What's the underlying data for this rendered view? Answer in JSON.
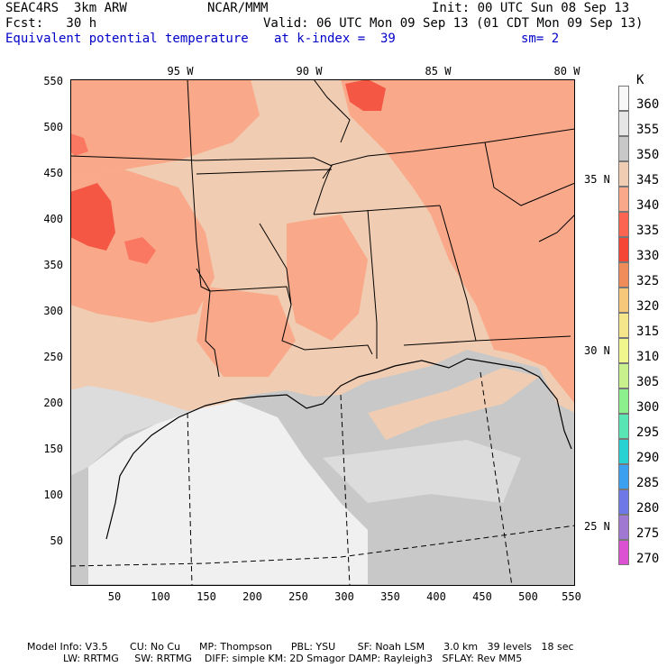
{
  "header": {
    "model": "SEAC4RS  3km ARW",
    "org": "NCAR/MMM",
    "init": "Init: 00 UTC Sun 08 Sep 13",
    "fcst": "Fcst:   30 h",
    "valid": "Valid: 06 UTC Mon 09 Sep 13 (01 CDT Mon 09 Sep 13)",
    "field": "Equivalent potential temperature",
    "level": "at k-index =  39",
    "smooth": "sm= 2"
  },
  "map": {
    "x_ticks": [
      "50",
      "100",
      "150",
      "200",
      "250",
      "300",
      "350",
      "400",
      "450",
      "500",
      "550"
    ],
    "y_ticks": [
      "50",
      "100",
      "150",
      "200",
      "250",
      "300",
      "350",
      "400",
      "450",
      "500",
      "550"
    ],
    "lon_labels": [
      "95 W",
      "90 W",
      "85 W",
      "80 W"
    ],
    "lat_labels": [
      "35 N",
      "30 N",
      "25 N"
    ],
    "colors": {
      "c340": "#f9a98a",
      "c345": "#f0cdb2",
      "c350": "#c8c8c8",
      "c355": "#dcdcdc",
      "c360": "#f0f0f0",
      "c335": "#fa7862",
      "c330": "#f45845",
      "c325": "#f08c5a",
      "border": "#000000"
    }
  },
  "colorbar": {
    "unit": "K",
    "levels": [
      "360",
      "355",
      "350",
      "345",
      "340",
      "335",
      "330",
      "325",
      "320",
      "315",
      "310",
      "305",
      "300",
      "295",
      "290",
      "285",
      "280",
      "275",
      "270"
    ],
    "colors": [
      "#f8f8f8",
      "#e6e6e6",
      "#c8c8c8",
      "#f0cdb2",
      "#f9a98a",
      "#fa6450",
      "#f44535",
      "#f08c5a",
      "#f5c87a",
      "#f5e68c",
      "#f0f58c",
      "#c8f08c",
      "#8cf08c",
      "#5ae6b4",
      "#28d2d2",
      "#3ca0f0",
      "#6e78e6",
      "#a078d2",
      "#dc50d2"
    ]
  },
  "footer": {
    "line1": "Model Info: V3.5       CU: No Cu      MP: Thompson      PBL: YSU       SF: Noah LSM      3.0 km   39 levels   18 sec",
    "line2": "LW: RRTMG     SW: RRTMG    DIFF: simple KM: 2D Smagor DAMP: Rayleigh3   SFLAY: Rev MM5"
  }
}
